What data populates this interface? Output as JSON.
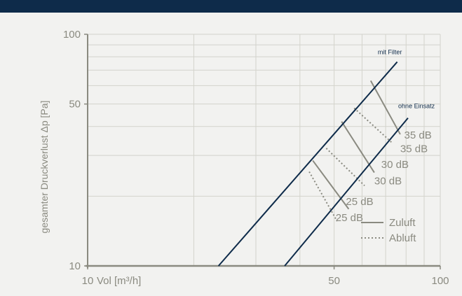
{
  "chart_data": {
    "type": "line",
    "x_scale": "log",
    "y_scale": "log",
    "xlim": [
      10,
      100
    ],
    "ylim": [
      10,
      100
    ],
    "grid": true,
    "xlabel": "Vol [m³/h]",
    "ylabel": "gesamter Druckverlust Δp [Pa]",
    "x_ticks": [
      {
        "value": 10,
        "label": "10"
      },
      {
        "value": 50,
        "label": "50"
      },
      {
        "value": 100,
        "label": "100"
      }
    ],
    "y_ticks": [
      {
        "value": 10,
        "label": "10"
      },
      {
        "value": 50,
        "label": "50"
      },
      {
        "value": 100,
        "label": "100"
      }
    ],
    "series": [
      {
        "name": "mit Filter",
        "color": "#0e2b4a",
        "x": [
          23.5,
          75.5
        ],
        "y": [
          10,
          76
        ]
      },
      {
        "name": "ohne Einsatz",
        "color": "#0e2b4a",
        "x": [
          36.2,
          81
        ],
        "y": [
          10,
          43.5
        ]
      }
    ],
    "sound_lines": [
      {
        "label": "35 dB",
        "kind": "Zuluft",
        "x": [
          63.5,
          77
        ],
        "y": [
          63,
          37
        ],
        "label_x": 79,
        "label_y": 35.5
      },
      {
        "label": "35 dB",
        "kind": "Abluft",
        "x": [
          57,
          73
        ],
        "y": [
          48,
          34
        ],
        "label_x": 77,
        "label_y": 31
      },
      {
        "label": "30 dB",
        "kind": "Zuluft",
        "x": [
          52.5,
          65
        ],
        "y": [
          42,
          25.3
        ],
        "label_x": 68,
        "label_y": 26.5
      },
      {
        "label": "30 dB",
        "kind": "Abluft",
        "x": [
          47.5,
          61
        ],
        "y": [
          32.2,
          22.2
        ],
        "label_x": 65,
        "label_y": 22.5
      },
      {
        "label": "25 dB",
        "kind": "Zuluft",
        "x": [
          43.5,
          55
        ],
        "y": [
          28.5,
          17.6
        ],
        "label_x": 54,
        "label_y": 18.3
      },
      {
        "label": "25 dB",
        "kind": "Abluft",
        "x": [
          42.5,
          51
        ],
        "y": [
          25.5,
          15.6
        ],
        "label_x": 50.5,
        "label_y": 15.6
      }
    ],
    "annotations": [
      {
        "text": "mit Filter",
        "x": 66.5,
        "y": 82
      },
      {
        "text": "ohne Einsatz",
        "x": 76,
        "y": 48
      }
    ],
    "legend": {
      "placement": "bottom-right",
      "entries": [
        {
          "label": "Zuluft",
          "style": "solid"
        },
        {
          "label": "Abluft",
          "style": "dotted"
        }
      ]
    },
    "colors": {
      "background": "#f2f2f0",
      "header": "#0e2b4a",
      "grid": "#d3d3cc",
      "axis": "#8a8a80",
      "sound_line": "#8a8a80",
      "curve": "#0e2b4a"
    }
  }
}
